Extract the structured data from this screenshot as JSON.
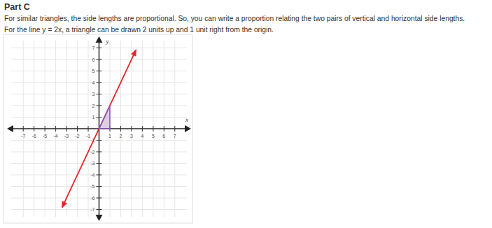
{
  "chart_data": {
    "type": "line",
    "title": "Part C",
    "annotations": [
      "For similar triangles, the side lengths are proportional. So, you can write a proportion relating the two pairs of vertical and horizontal side lengths.",
      "For the line y = 2x, a triangle can be drawn 2 units up and 1 unit right from the origin."
    ],
    "x_label": "x",
    "y_label": "y",
    "xlim": [
      -8.5,
      8.5
    ],
    "ylim": [
      -8,
      8
    ],
    "xticks": [
      -7,
      -6,
      -5,
      -4,
      -3,
      -2,
      -1,
      1,
      2,
      3,
      4,
      5,
      6,
      7
    ],
    "yticks": [
      -7,
      -6,
      -5,
      -4,
      -3,
      -2,
      -1,
      1,
      2,
      3,
      4,
      5,
      6,
      7
    ],
    "grid": true,
    "series": [
      {
        "type": "line",
        "color": "#e3262b",
        "marker": "arrow",
        "x": [
          -3.4,
          3.4
        ],
        "values": [
          -6.8,
          6.8
        ]
      },
      {
        "type": "polygon",
        "color": "#8a5cb8",
        "x": [
          0,
          1,
          1
        ],
        "values": [
          0,
          0,
          2
        ]
      }
    ]
  }
}
